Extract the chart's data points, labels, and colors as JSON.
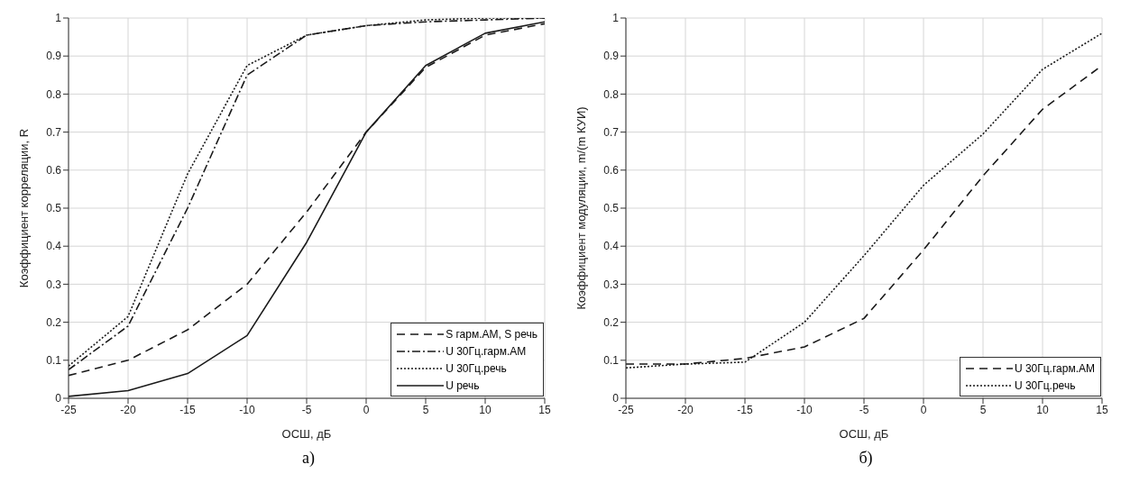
{
  "chart_data": [
    {
      "type": "line",
      "xlabel": "ОСШ, дБ",
      "ylabel": "Коэффициент корреляции, R",
      "annotations": [
        "а)"
      ],
      "x": [
        -25,
        -20,
        -15,
        -10,
        -5,
        0,
        5,
        10,
        15
      ],
      "series": [
        {
          "name": "S гарм.АМ, S речь",
          "color": "#1a1a1a",
          "line_style": "dashed",
          "values": [
            0.06,
            0.1,
            0.18,
            0.3,
            0.49,
            0.7,
            0.87,
            0.955,
            0.985
          ]
        },
        {
          "name": "U 30Гц.гарм.АМ",
          "color": "#1a1a1a",
          "line_style": "dashdot",
          "values": [
            0.075,
            0.19,
            0.5,
            0.85,
            0.955,
            0.98,
            0.99,
            0.995,
            1.0
          ]
        },
        {
          "name": "U 30Гц.речь",
          "color": "#1a1a1a",
          "line_style": "dotted",
          "values": [
            0.085,
            0.215,
            0.59,
            0.875,
            0.955,
            0.98,
            0.995,
            1.0,
            1.0
          ]
        },
        {
          "name": "U речь",
          "color": "#1a1a1a",
          "line_style": "solid",
          "values": [
            0.005,
            0.02,
            0.065,
            0.165,
            0.41,
            0.7,
            0.875,
            0.96,
            0.99
          ]
        }
      ],
      "xlim": [
        -25,
        15
      ],
      "xticks": [
        -25,
        -20,
        -15,
        -10,
        -5,
        0,
        5,
        10,
        15
      ],
      "ylim": [
        0,
        1
      ],
      "yticks": [
        0,
        0.1,
        0.2,
        0.3,
        0.4,
        0.5,
        0.6,
        0.7,
        0.8,
        0.9,
        1
      ],
      "grid": true,
      "legend": "bottom right",
      "marker": "none"
    },
    {
      "type": "line",
      "xlabel": "ОСШ, дБ",
      "ylabel": "Коэффициент модуляции, m/(m КУИ)",
      "annotations": [
        "б)"
      ],
      "x": [
        -25,
        -20,
        -15,
        -10,
        -5,
        0,
        5,
        10,
        15
      ],
      "series": [
        {
          "name": "U 30Гц.гарм.АМ",
          "color": "#1a1a1a",
          "line_style": "dashed",
          "values": [
            0.09,
            0.09,
            0.105,
            0.135,
            0.21,
            0.39,
            0.585,
            0.76,
            0.875
          ]
        },
        {
          "name": "U 30Гц.речь",
          "color": "#1a1a1a",
          "line_style": "dotted",
          "values": [
            0.08,
            0.09,
            0.095,
            0.2,
            0.375,
            0.56,
            0.695,
            0.865,
            0.96
          ]
        }
      ],
      "xlim": [
        -25,
        15
      ],
      "xticks": [
        -25,
        -20,
        -15,
        -10,
        -5,
        0,
        5,
        10,
        15
      ],
      "ylim": [
        0,
        1
      ],
      "yticks": [
        0,
        0.1,
        0.2,
        0.3,
        0.4,
        0.5,
        0.6,
        0.7,
        0.8,
        0.9,
        1
      ],
      "grid": true,
      "legend": "bottom right",
      "marker": "none"
    }
  ]
}
